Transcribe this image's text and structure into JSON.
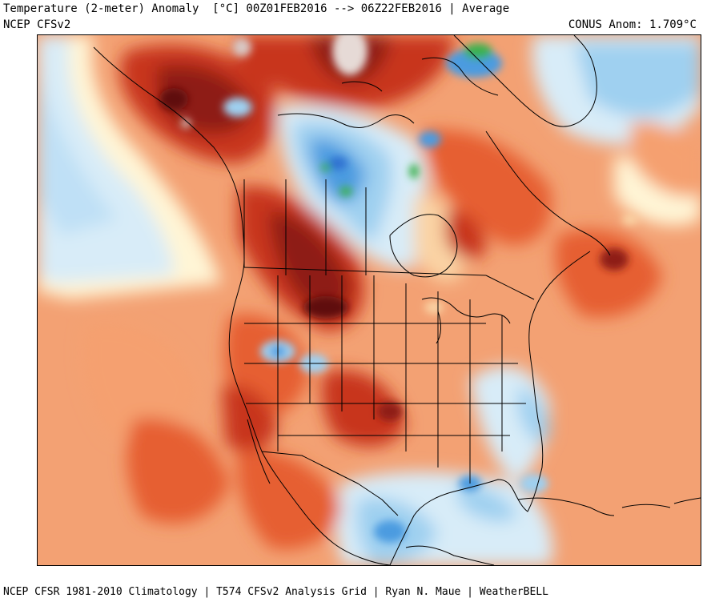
{
  "header": {
    "title": "Temperature (2-meter) Anomaly  [°C] 00Z01FEB2016 --> 06Z22FEB2016 | Average",
    "model": "NCEP CFSv2",
    "anomaly_label": "CONUS Anom: 1.709°C"
  },
  "footer": {
    "credit": "NCEP CFSR 1981-2010 Climatology | T574 CFSv2 Analysis Grid | Ryan N. Maue | WeatherBELL"
  },
  "map": {
    "region": "North America",
    "variable": "2-meter temperature anomaly (°C)",
    "colors": {
      "strong_warm_dark": "#5e0f0f",
      "strong_warm": "#8e1d12",
      "warm_red": "#c8361a",
      "warm": "#e65f32",
      "mild_warm": "#f5a070",
      "slight_warm": "#fad3a4",
      "neutral": "#fff5d6",
      "slight_cool": "#d8ecf8",
      "cool": "#9fd0f0",
      "cold": "#4b9be0",
      "very_cold": "#2e6fd0",
      "extreme_cold": "#3bb14f",
      "extreme_warm": "#e6dad6"
    }
  }
}
